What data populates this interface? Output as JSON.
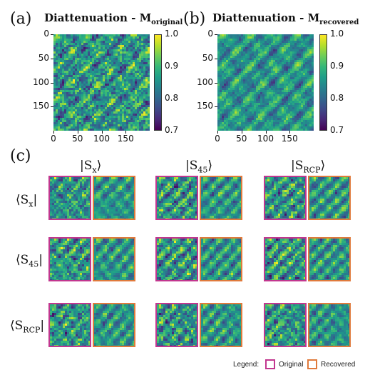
{
  "panel_a": {
    "letter": "(a)",
    "title_main": "Diattenuation - M",
    "title_sub": "original",
    "x_ticks": [
      "0",
      "50",
      "100",
      "150"
    ],
    "y_ticks": [
      "0",
      "50",
      "100",
      "150"
    ],
    "colorbar_ticks": [
      "1.0",
      "0.9",
      "0.8",
      "0.7"
    ],
    "colormap": "viridis"
  },
  "panel_b": {
    "letter": "(b)",
    "title_main": "Diattenuation - M",
    "title_sub": "recovered",
    "x_ticks": [
      "0",
      "50",
      "100",
      "150"
    ],
    "y_ticks": [
      "0",
      "50",
      "100",
      "150"
    ],
    "colorbar_ticks": [
      "1.0",
      "0.9",
      "0.8",
      "0.7"
    ],
    "colormap": "viridis"
  },
  "panel_c": {
    "letter": "(c)",
    "columns": [
      {
        "main": "|S",
        "sub": "x",
        "close": "⟩"
      },
      {
        "main": "|S",
        "sub": "45",
        "close": "⟩"
      },
      {
        "main": "|S",
        "sub": "RCP",
        "close": "⟩"
      }
    ],
    "rows": [
      {
        "open": "⟨S",
        "sub": "x",
        "close": "|"
      },
      {
        "open": "⟨S",
        "sub": "45",
        "close": "|"
      },
      {
        "open": "⟨S",
        "sub": "RCP",
        "close": "|"
      }
    ]
  },
  "legend": {
    "title": "Legend:",
    "original_label": "Original",
    "recovered_label": "Recovered",
    "original_color": "#c2378f",
    "recovered_color": "#e07a3c"
  }
}
